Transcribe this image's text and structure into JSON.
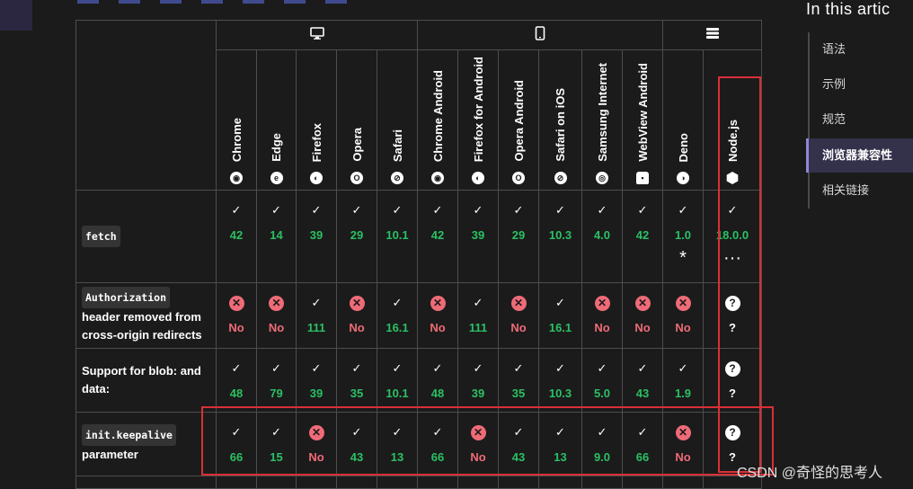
{
  "sidebar": {
    "title": "In this artic",
    "items": [
      "语法",
      "示例",
      "规范",
      "浏览器兼容性",
      "相关链接"
    ],
    "active_index": 3
  },
  "watermark": "CSDN @奇怪的思考人",
  "groups": [
    {
      "name": "desktop",
      "icon": "monitor-icon",
      "span": 5
    },
    {
      "name": "mobile",
      "icon": "mobile-icon",
      "span": 6
    },
    {
      "name": "server",
      "icon": "server-icon",
      "span": 2
    }
  ],
  "browsers": [
    {
      "name": "Chrome",
      "icon": "chrome-icon",
      "glyph": "◉"
    },
    {
      "name": "Edge",
      "icon": "edge-icon",
      "glyph": "e"
    },
    {
      "name": "Firefox",
      "icon": "firefox-icon",
      "glyph": "◐"
    },
    {
      "name": "Opera",
      "icon": "opera-icon",
      "glyph": "O"
    },
    {
      "name": "Safari",
      "icon": "safari-icon",
      "glyph": "⊘"
    },
    {
      "name": "Chrome Android",
      "icon": "chrome-icon",
      "glyph": "◉"
    },
    {
      "name": "Firefox for Android",
      "icon": "firefox-icon",
      "glyph": "◐"
    },
    {
      "name": "Opera Android",
      "icon": "opera-icon",
      "glyph": "O"
    },
    {
      "name": "Safari on iOS",
      "icon": "safari-icon",
      "glyph": "⊘"
    },
    {
      "name": "Samsung Internet",
      "icon": "samsung-internet-icon",
      "glyph": "◎"
    },
    {
      "name": "WebView Android",
      "icon": "android-icon",
      "glyph": "▪"
    },
    {
      "name": "Deno",
      "icon": "deno-icon",
      "glyph": "◑"
    },
    {
      "name": "Node.js",
      "icon": "nodejs-icon",
      "glyph": ""
    }
  ],
  "rows": [
    {
      "key": "fetch",
      "feature_code": "fetch",
      "feature_text": "",
      "cells": [
        {
          "status": "yes",
          "value": "42"
        },
        {
          "status": "yes",
          "value": "14"
        },
        {
          "status": "yes",
          "value": "39"
        },
        {
          "status": "yes",
          "value": "29"
        },
        {
          "status": "yes",
          "value": "10.1"
        },
        {
          "status": "yes",
          "value": "42"
        },
        {
          "status": "yes",
          "value": "39"
        },
        {
          "status": "yes",
          "value": "29"
        },
        {
          "status": "yes",
          "value": "10.3"
        },
        {
          "status": "yes",
          "value": "4.0"
        },
        {
          "status": "yes",
          "value": "42"
        },
        {
          "status": "yes",
          "value": "1.0",
          "note": "*"
        },
        {
          "status": "yes",
          "value": "18.0.0",
          "note": "···"
        }
      ]
    },
    {
      "key": "auth",
      "feature_code": "Authorization",
      "feature_text": "header removed from cross-origin redirects",
      "cells": [
        {
          "status": "no",
          "value": "No"
        },
        {
          "status": "no",
          "value": "No"
        },
        {
          "status": "yes",
          "value": "111"
        },
        {
          "status": "no",
          "value": "No"
        },
        {
          "status": "yes",
          "value": "16.1"
        },
        {
          "status": "no",
          "value": "No"
        },
        {
          "status": "yes",
          "value": "111"
        },
        {
          "status": "no",
          "value": "No"
        },
        {
          "status": "yes",
          "value": "16.1"
        },
        {
          "status": "no",
          "value": "No"
        },
        {
          "status": "no",
          "value": "No"
        },
        {
          "status": "no",
          "value": "No"
        },
        {
          "status": "unknown",
          "value": "?"
        }
      ]
    },
    {
      "key": "blob",
      "feature_code": "",
      "feature_text": "Support for blob: and data:",
      "cells": [
        {
          "status": "yes",
          "value": "48"
        },
        {
          "status": "yes",
          "value": "79"
        },
        {
          "status": "yes",
          "value": "39"
        },
        {
          "status": "yes",
          "value": "35"
        },
        {
          "status": "yes",
          "value": "10.1"
        },
        {
          "status": "yes",
          "value": "48"
        },
        {
          "status": "yes",
          "value": "39"
        },
        {
          "status": "yes",
          "value": "35"
        },
        {
          "status": "yes",
          "value": "10.3"
        },
        {
          "status": "yes",
          "value": "5.0"
        },
        {
          "status": "yes",
          "value": "43"
        },
        {
          "status": "yes",
          "value": "1.9"
        },
        {
          "status": "unknown",
          "value": "?"
        }
      ]
    },
    {
      "key": "keep",
      "feature_code": "init.keepalive",
      "feature_text": "parameter",
      "cells": [
        {
          "status": "yes",
          "value": "66"
        },
        {
          "status": "yes",
          "value": "15"
        },
        {
          "status": "no",
          "value": "No"
        },
        {
          "status": "yes",
          "value": "43"
        },
        {
          "status": "yes",
          "value": "13"
        },
        {
          "status": "yes",
          "value": "66"
        },
        {
          "status": "no",
          "value": "No"
        },
        {
          "status": "yes",
          "value": "43"
        },
        {
          "status": "yes",
          "value": "13"
        },
        {
          "status": "yes",
          "value": "9.0"
        },
        {
          "status": "yes",
          "value": "66"
        },
        {
          "status": "no",
          "value": "No"
        },
        {
          "status": "unknown",
          "value": "?"
        }
      ]
    }
  ],
  "colors": {
    "supported": "#2bc064",
    "unsupported": "#ee6b77",
    "background": "#1b1b1b",
    "highlight": "#d93037"
  }
}
